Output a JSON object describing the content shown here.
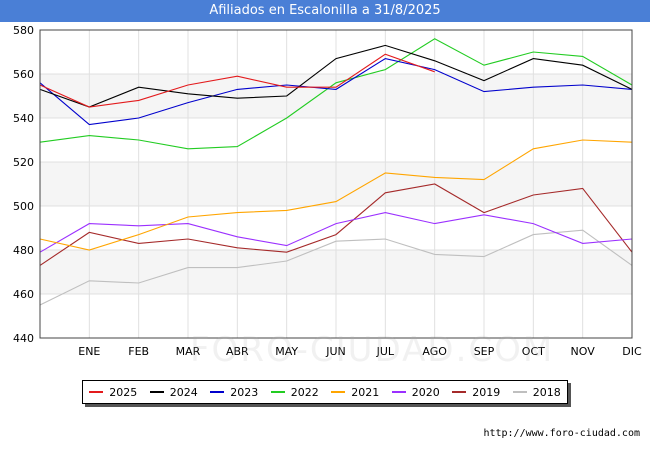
{
  "title": "Afiliados en Escalonilla a 31/8/2025",
  "source": "http://www.foro-ciudad.com",
  "watermark": "FORO-CIUDAD.COM",
  "chart_data": {
    "type": "line",
    "title": "Afiliados en Escalonilla a 31/8/2025",
    "xlabel": "",
    "ylabel": "",
    "categories": [
      "",
      "ENE",
      "FEB",
      "MAR",
      "ABR",
      "MAY",
      "JUN",
      "JUL",
      "AGO",
      "SEP",
      "OCT",
      "NOV",
      "DIC"
    ],
    "ylim": [
      440,
      580
    ],
    "yticks": [
      440,
      460,
      480,
      500,
      520,
      540,
      560,
      580
    ],
    "grid": true,
    "legend_position": "bottom",
    "series": [
      {
        "name": "2025",
        "color": "#e31a1c",
        "values": [
          555,
          545,
          548,
          555,
          559,
          554,
          554,
          569,
          561,
          null,
          null,
          null,
          null
        ]
      },
      {
        "name": "2024",
        "color": "#000000",
        "values": [
          553,
          545,
          554,
          551,
          549,
          550,
          567,
          573,
          566,
          557,
          567,
          564,
          553
        ]
      },
      {
        "name": "2023",
        "color": "#0000cc",
        "values": [
          556,
          537,
          540,
          547,
          553,
          555,
          553,
          567,
          562,
          552,
          554,
          555,
          553
        ]
      },
      {
        "name": "2022",
        "color": "#22cc22",
        "values": [
          529,
          532,
          530,
          526,
          527,
          540,
          556,
          562,
          576,
          564,
          570,
          568,
          555
        ]
      },
      {
        "name": "2021",
        "color": "#ffa500",
        "values": [
          485,
          480,
          487,
          495,
          497,
          498,
          502,
          515,
          513,
          512,
          526,
          530,
          529
        ]
      },
      {
        "name": "2020",
        "color": "#9b30ff",
        "values": [
          479,
          492,
          491,
          492,
          486,
          482,
          492,
          497,
          492,
          496,
          492,
          483,
          485
        ]
      },
      {
        "name": "2019",
        "color": "#a52a2a",
        "values": [
          473,
          488,
          483,
          485,
          481,
          479,
          487,
          506,
          510,
          497,
          505,
          508,
          479
        ]
      },
      {
        "name": "2018",
        "color": "#bfbfbf",
        "values": [
          455,
          466,
          465,
          472,
          472,
          475,
          484,
          485,
          478,
          477,
          487,
          489,
          473
        ]
      }
    ]
  }
}
